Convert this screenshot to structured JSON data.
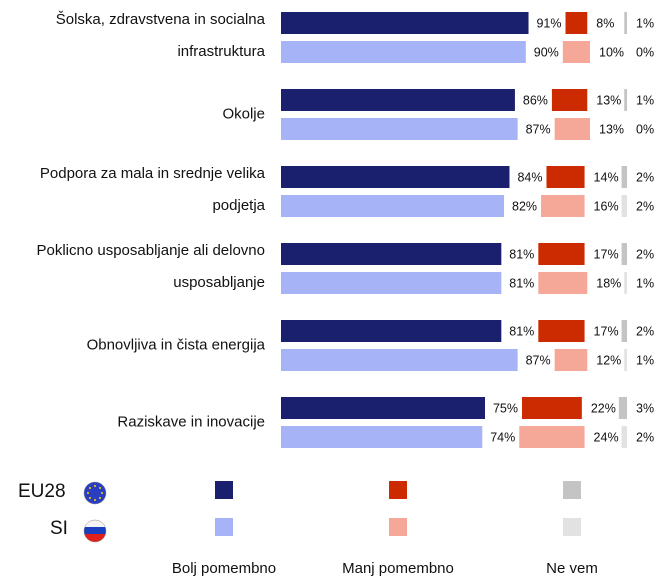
{
  "chart_data": {
    "type": "bar",
    "categories": [
      [
        "Šolska, zdravstvena in socialna",
        "infrastruktura"
      ],
      [
        "Okolje"
      ],
      [
        "Podpora za mala in srednje velika",
        "podjetja"
      ],
      [
        "Poklicno usposabljanje ali delovno",
        "usposabljanje"
      ],
      [
        "Obnovljiva in čista energija"
      ],
      [
        "Raziskave in inovacije"
      ]
    ],
    "groups": [
      {
        "name": "EU28",
        "series": [
          {
            "name": "Bolj pomembno",
            "color": "#1a1f6e",
            "values": [
              91,
              86,
              84,
              81,
              81,
              75
            ],
            "value_labels": [
              "91%",
              "86%",
              "84%",
              "81%",
              "81%",
              "75%"
            ]
          },
          {
            "name": "Manj pomembno",
            "color": "#cc2a00",
            "values": [
              8,
              13,
              14,
              17,
              17,
              22
            ],
            "value_labels": [
              "8%",
              "13%",
              "14%",
              "17%",
              "17%",
              "22%"
            ]
          },
          {
            "name": "Ne vem",
            "color": "#c4c4c4",
            "values": [
              1,
              1,
              2,
              2,
              2,
              3
            ],
            "value_labels": [
              "1%",
              "1%",
              "2%",
              "2%",
              "2%",
              "3%"
            ]
          }
        ]
      },
      {
        "name": "SI",
        "series": [
          {
            "name": "Bolj pomembno",
            "color": "#a6b4f7",
            "values": [
              90,
              87,
              82,
              81,
              87,
              74
            ],
            "value_labels": [
              "90%",
              "87%",
              "82%",
              "81%",
              "87%",
              "74%"
            ]
          },
          {
            "name": "Manj pomembno",
            "color": "#f5a898",
            "values": [
              10,
              13,
              16,
              18,
              12,
              24
            ],
            "value_labels": [
              "10%",
              "13%",
              "16%",
              "18%",
              "12%",
              "24%"
            ]
          },
          {
            "name": "Ne vem",
            "color": "#e2e2e2",
            "values": [
              0,
              0,
              2,
              1,
              1,
              2
            ],
            "value_labels": [
              "0%",
              "0%",
              "2%",
              "1%",
              "1%",
              "2%"
            ]
          }
        ]
      }
    ]
  }
}
